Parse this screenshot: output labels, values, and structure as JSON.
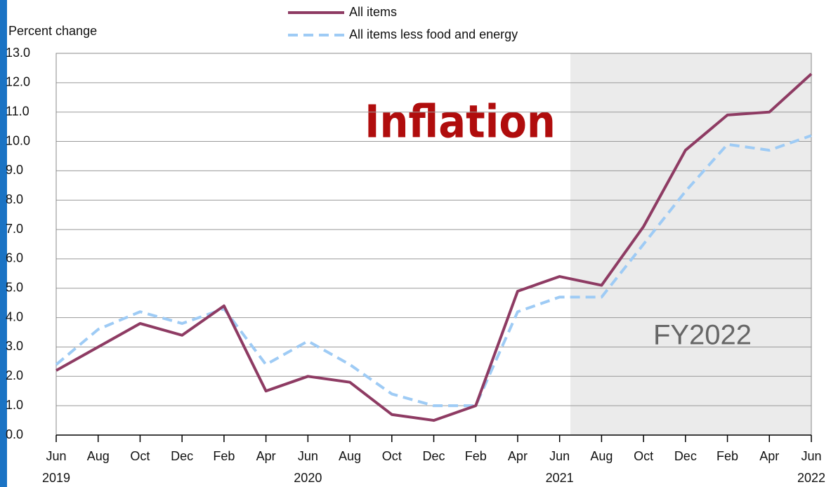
{
  "chart_data": {
    "type": "line",
    "title": "Inflation",
    "y_axis_label": "Percent change",
    "annotation": "FY2022",
    "categories": [
      "Jun",
      "Aug",
      "Oct",
      "Dec",
      "Feb",
      "Apr",
      "Jun",
      "Aug",
      "Oct",
      "Dec",
      "Feb",
      "Apr",
      "Jun",
      "Aug",
      "Oct",
      "Dec",
      "Feb",
      "Apr",
      "Jun"
    ],
    "category_years": [
      "2019",
      null,
      null,
      null,
      null,
      null,
      "2020",
      null,
      null,
      null,
      null,
      null,
      "2021",
      null,
      null,
      null,
      null,
      null,
      "2022"
    ],
    "series": [
      {
        "name": "All items",
        "color": "#8e3b63",
        "dash": false,
        "values": [
          2.2,
          3.0,
          3.8,
          3.4,
          4.4,
          1.5,
          2.0,
          1.8,
          0.7,
          0.5,
          1.0,
          4.9,
          5.4,
          5.1,
          7.1,
          9.7,
          10.9,
          11.0,
          12.3
        ]
      },
      {
        "name": "All items less food and energy",
        "color": "#9ecbf5",
        "dash": true,
        "values": [
          2.4,
          3.6,
          4.2,
          3.8,
          4.3,
          2.4,
          3.2,
          2.4,
          1.4,
          1.0,
          1.0,
          4.2,
          4.7,
          4.7,
          6.5,
          8.3,
          9.9,
          9.7,
          10.2
        ]
      }
    ],
    "ylim": [
      0,
      13
    ],
    "yticks": [
      {
        "value": 0,
        "label": "0.0"
      },
      {
        "value": 1,
        "label": "1.0"
      },
      {
        "value": 2,
        "label": "2.0"
      },
      {
        "value": 3,
        "label": "3.0"
      },
      {
        "value": 4,
        "label": "4.0"
      },
      {
        "value": 5,
        "label": "5.0"
      },
      {
        "value": 6,
        "label": "6.0"
      },
      {
        "value": 7,
        "label": "7.0"
      },
      {
        "value": 8,
        "label": "8.0"
      },
      {
        "value": 9,
        "label": "9.0"
      },
      {
        "value": 10,
        "label": "10.0"
      },
      {
        "value": 11,
        "label": "11.0"
      },
      {
        "value": 12,
        "label": "12.0"
      },
      {
        "value": 13,
        "label": "13.0"
      }
    ],
    "grid": true
  }
}
